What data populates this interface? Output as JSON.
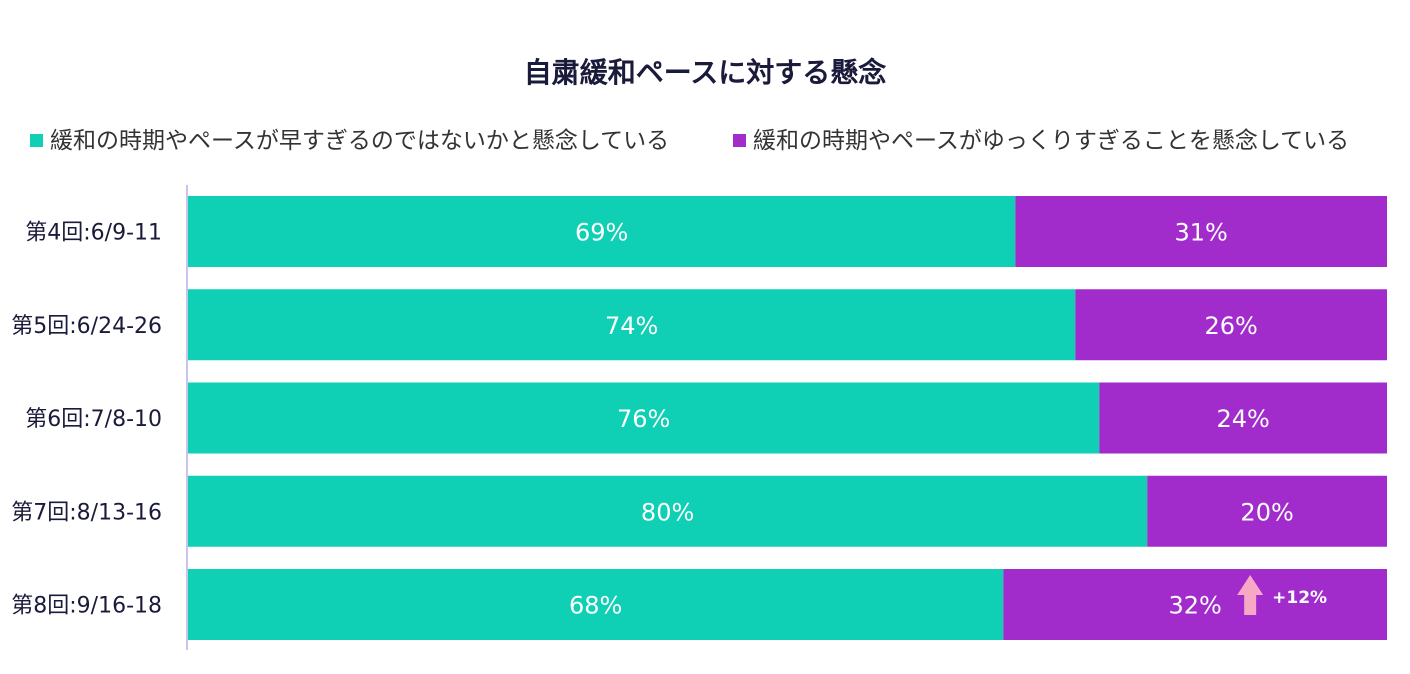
{
  "chart_data": {
    "type": "bar",
    "orientation": "horizontal",
    "stacked": true,
    "title": "自粛緩和ペースに対する懸念",
    "categories": [
      "第4回:6/9-11",
      "第5回:6/24-26",
      "第6回:7/8-10",
      "第7回:8/13-16",
      "第8回:9/16-18"
    ],
    "series": [
      {
        "name": "緩和の時期やペースが早すぎるのではないかと懸念している",
        "color": "#0fcfb5",
        "values": [
          69,
          74,
          76,
          80,
          68
        ]
      },
      {
        "name": "緩和の時期やペースがゆっくりすぎることを懸念している",
        "color": "#a12ccb",
        "values": [
          31,
          26,
          24,
          20,
          32
        ]
      }
    ],
    "value_suffix": "%",
    "xlim": [
      0,
      100
    ],
    "legend_position": "top",
    "grid": false,
    "annotation": {
      "category_index": 4,
      "series_index": 1,
      "label": "+12%",
      "arrow": "up",
      "arrow_color": "#f7a8c4"
    }
  }
}
